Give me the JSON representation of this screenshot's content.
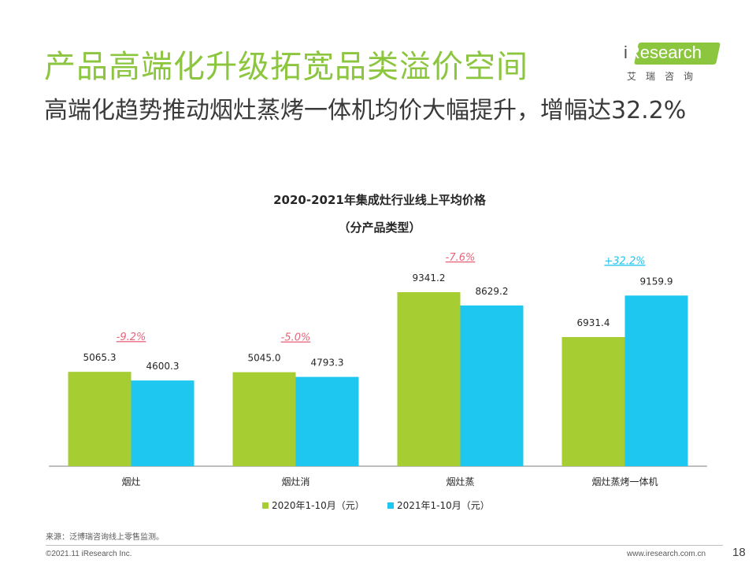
{
  "header": {
    "title": "产品高端化升级拓宽品类溢价空间",
    "subtitle": "高端化趋势推动烟灶蒸烤一体机均价大幅提升，增幅达32.2%"
  },
  "logo": {
    "i_letter": "i",
    "brand": "Research",
    "chinese": "艾瑞咨询"
  },
  "colors": {
    "accent": "#8cc63f",
    "series_2020": "#a6cd32",
    "series_2021": "#1ec7ef",
    "negative_change": "#e8657a",
    "positive_change": "#1ec7ef"
  },
  "chart_data": {
    "type": "bar",
    "title": "2020-2021年集成灶行业线上平均价格",
    "subtitle": "（分产品类型）",
    "categories": [
      "烟灶",
      "烟灶消",
      "烟灶蒸",
      "烟灶蒸烤一体机"
    ],
    "series": [
      {
        "name": "2020年1-10月（元）",
        "values": [
          5065.3,
          5045.0,
          9341.2,
          6931.4
        ],
        "labels": [
          "5065.3",
          "5045.0",
          "9341.2",
          "6931.4"
        ]
      },
      {
        "name": "2021年1-10月（元）",
        "values": [
          4600.3,
          4793.3,
          8629.2,
          9159.9
        ],
        "labels": [
          "4600.3",
          "4793.3",
          "8629.2",
          "9159.9"
        ]
      }
    ],
    "changes": [
      "-9.2%",
      "-5.0%",
      "-7.6%",
      "+32.2%"
    ],
    "ylim": [
      0,
      10600
    ],
    "xlabel": "",
    "ylabel": "",
    "legend_position": "bottom",
    "grid": false
  },
  "footer": {
    "source": "来源：泛博瑞咨询线上零售监测。",
    "copyright": "©2021.11 iResearch Inc.",
    "website": "www.iresearch.com.cn",
    "page_number": "18"
  }
}
